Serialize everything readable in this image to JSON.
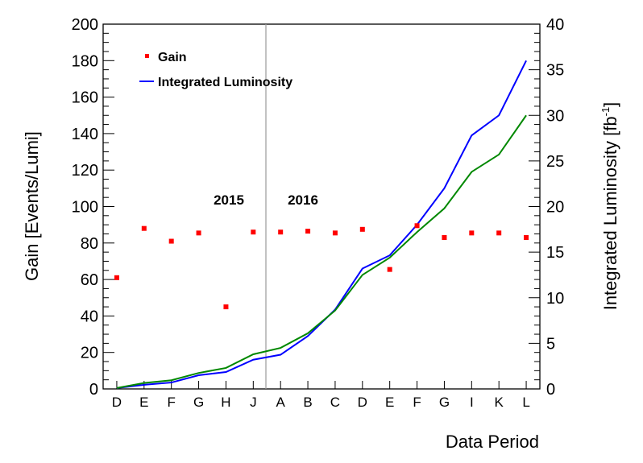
{
  "chart_data": {
    "type": "line",
    "categories": [
      "D",
      "E",
      "F",
      "G",
      "H",
      "J",
      "A",
      "B",
      "C",
      "D",
      "E",
      "F",
      "G",
      "I",
      "K",
      "L"
    ],
    "xlabel": "Data Period",
    "ylabel": "Gain [Events/Lumi]",
    "ylabel2": "Integrated Luminosity [fb",
    "ylabel2_sup": "-1",
    "ylabel2_end": "]",
    "ylim": [
      0,
      200
    ],
    "y2lim": [
      0,
      40
    ],
    "yticks": [
      0,
      20,
      40,
      60,
      80,
      100,
      120,
      140,
      160,
      180,
      200
    ],
    "y2ticks": [
      0,
      5,
      10,
      15,
      20,
      25,
      30,
      35,
      40
    ],
    "annotations": [
      "2015",
      "2016"
    ],
    "series": [
      {
        "name": "Gain",
        "type": "scatter",
        "axis": "left",
        "color": "#ff0000",
        "values": [
          61,
          88,
          81,
          85.5,
          45,
          86,
          86,
          86.5,
          85.5,
          87.5,
          65.5,
          89.5,
          83,
          85.5,
          85.5,
          83
        ]
      },
      {
        "name": "Integrated Luminosity",
        "type": "line",
        "axis": "right",
        "color": "#0000ff",
        "values": [
          0.1,
          0.45,
          0.7,
          1.5,
          1.85,
          3.2,
          3.75,
          5.8,
          8.7,
          13.2,
          14.65,
          18.0,
          22.0,
          27.8,
          30.0,
          36.0
        ]
      },
      {
        "type": "line",
        "axis": "right",
        "color": "#008800",
        "values": [
          0.1,
          0.65,
          0.95,
          1.75,
          2.3,
          3.8,
          4.5,
          6.1,
          8.6,
          12.5,
          14.4,
          17.2,
          19.8,
          23.8,
          25.7,
          30.0
        ]
      }
    ]
  }
}
